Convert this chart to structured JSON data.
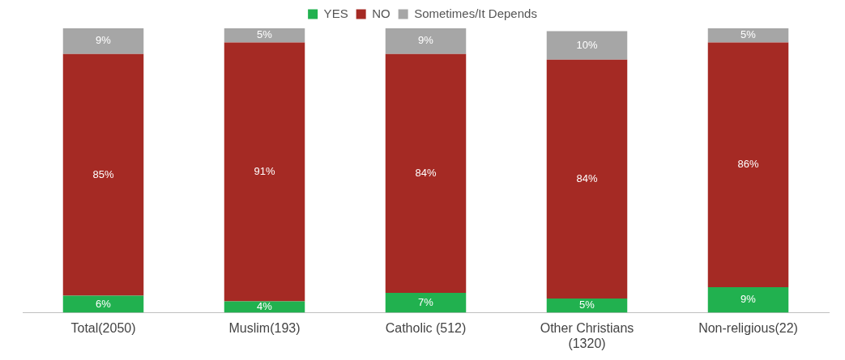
{
  "chart_data": {
    "type": "bar",
    "stacked": true,
    "categories": [
      "Total(2050)",
      "Muslim(193)",
      "Catholic (512)",
      "Other Christians (1320)",
      "Non-religious(22)"
    ],
    "series": [
      {
        "name": "YES",
        "color": "#21b14f",
        "values": [
          6,
          4,
          7,
          5,
          9
        ],
        "value_labels": [
          "6%",
          "4%",
          "7%",
          "5%",
          "9%"
        ]
      },
      {
        "name": "NO",
        "color": "#a52a24",
        "values": [
          85,
          91,
          84,
          84,
          86
        ],
        "value_labels": [
          "85%",
          "91%",
          "84%",
          "84%",
          "86%"
        ]
      },
      {
        "name": "Sometimes/It Depends",
        "color": "#a6a6a6",
        "values": [
          9,
          5,
          9,
          10,
          5
        ],
        "value_labels": [
          "9%",
          "5%",
          "9%",
          "10%",
          "5%"
        ]
      }
    ],
    "ylim": [
      0,
      100
    ],
    "tick_labels": "x",
    "grid": false,
    "legend": "top"
  }
}
